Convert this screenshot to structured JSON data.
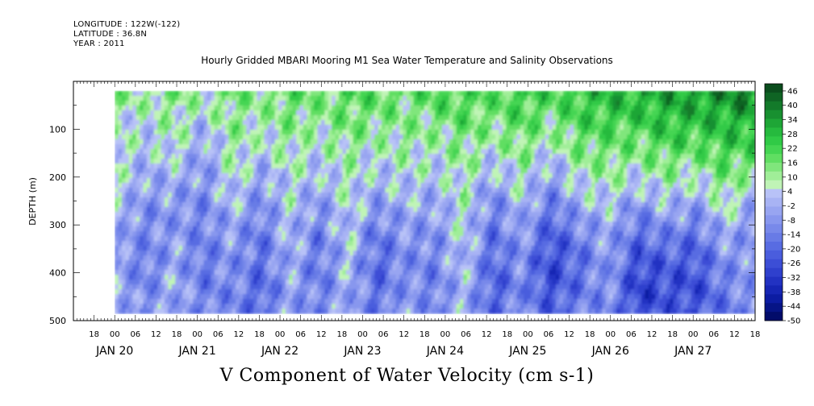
{
  "header": {
    "longitude": "LONGITUDE : 122W(-122)",
    "latitude": "LATITUDE : 36.8N",
    "year": "YEAR : 2011"
  },
  "chart_data": {
    "type": "heatmap",
    "title": "Hourly Gridded MBARI Mooring M1 Sea Water Temperature and Salinity Observations",
    "xlabel": "V Component of Water Velocity (cm s-1)",
    "ylabel": "DEPTH (m)",
    "ylim": [
      500,
      0
    ],
    "y_ticks": [
      100,
      200,
      300,
      400,
      500
    ],
    "x_hour_ticks": [
      "18",
      "00",
      "06",
      "12",
      "18",
      "00",
      "06",
      "12",
      "18",
      "00",
      "06",
      "12",
      "18",
      "00",
      "06",
      "12",
      "18",
      "00",
      "06",
      "12",
      "18",
      "00",
      "06",
      "12",
      "18",
      "00",
      "06",
      "12",
      "18",
      "00",
      "06",
      "12",
      "18"
    ],
    "x_day_labels": [
      "JAN 20",
      "JAN 21",
      "JAN 22",
      "JAN 23",
      "JAN 24",
      "JAN 25",
      "JAN 26",
      "JAN 27"
    ],
    "data_extent": {
      "x_start_hour_label": "JAN 20 00",
      "x_end_hour_label": "JAN 27 18",
      "depth_min": 20,
      "depth_max": 485
    },
    "colorbar": {
      "labels": [
        "46",
        "40",
        "34",
        "28",
        "22",
        "16",
        "10",
        "4",
        "-2",
        "-8",
        "-14",
        "-20",
        "-26",
        "-32",
        "-38",
        "-44",
        "-50"
      ],
      "range": [
        -50,
        49
      ]
    },
    "colors": {
      "strong_positive": "#0a5e1e",
      "positive": "#33d24a",
      "weak_positive": "#8ff08a",
      "weak_negative": "#a8b0f4",
      "negative": "#5a70e6",
      "strong_negative": "#1a2cc8"
    },
    "column_profiles": {
      "description_free_values_in_cm_s": [
        [
          12,
          6,
          8,
          6,
          4,
          0,
          -4,
          -6,
          -4,
          -2
        ],
        [
          10,
          4,
          2,
          -2,
          -6,
          -10,
          -12,
          -14,
          -12,
          -10
        ],
        [
          14,
          10,
          8,
          2,
          -4,
          -8,
          -6,
          -4,
          -2,
          -4
        ],
        [
          8,
          2,
          -4,
          -8,
          -10,
          -12,
          -14,
          -16,
          -14,
          -12
        ],
        [
          16,
          12,
          10,
          8,
          4,
          -2,
          -6,
          -8,
          -10,
          -12
        ],
        [
          12,
          8,
          4,
          -2,
          -8,
          -12,
          -16,
          -18,
          -20,
          -18
        ],
        [
          18,
          14,
          10,
          6,
          4,
          2,
          0,
          -2,
          -4,
          -6
        ],
        [
          14,
          10,
          6,
          2,
          -4,
          -10,
          -14,
          -16,
          -14,
          -12
        ],
        [
          20,
          16,
          12,
          8,
          6,
          4,
          2,
          0,
          -2,
          -4
        ],
        [
          18,
          14,
          8,
          2,
          -4,
          -10,
          -16,
          -20,
          -18,
          -16
        ],
        [
          16,
          12,
          10,
          6,
          2,
          -4,
          -8,
          -10,
          -8,
          -6
        ],
        [
          20,
          14,
          8,
          4,
          -2,
          -6,
          -10,
          -12,
          -14,
          -12
        ],
        [
          22,
          18,
          14,
          10,
          8,
          6,
          4,
          2,
          0,
          -2
        ],
        [
          18,
          14,
          8,
          0,
          -8,
          -14,
          -18,
          -20,
          -22,
          -20
        ],
        [
          24,
          20,
          16,
          10,
          4,
          -2,
          -6,
          -10,
          -12,
          -10
        ],
        [
          20,
          14,
          6,
          -2,
          -10,
          -18,
          -24,
          -28,
          -26,
          -22
        ],
        [
          26,
          22,
          16,
          10,
          2,
          -6,
          -14,
          -18,
          -16,
          -14
        ],
        [
          28,
          24,
          18,
          12,
          6,
          0,
          -4,
          -6,
          -8,
          -10
        ],
        [
          30,
          24,
          16,
          8,
          -2,
          -12,
          -20,
          -26,
          -30,
          -28
        ],
        [
          32,
          28,
          22,
          14,
          6,
          -4,
          -14,
          -22,
          -26,
          -24
        ],
        [
          34,
          28,
          20,
          10,
          0,
          -10,
          -18,
          -24,
          -26,
          -24
        ],
        [
          36,
          30,
          24,
          18,
          12,
          4,
          -4,
          -10,
          -14,
          -16
        ],
        [
          38,
          32,
          24,
          14,
          2,
          -6,
          -10,
          -8,
          -6,
          -8
        ]
      ]
    }
  }
}
